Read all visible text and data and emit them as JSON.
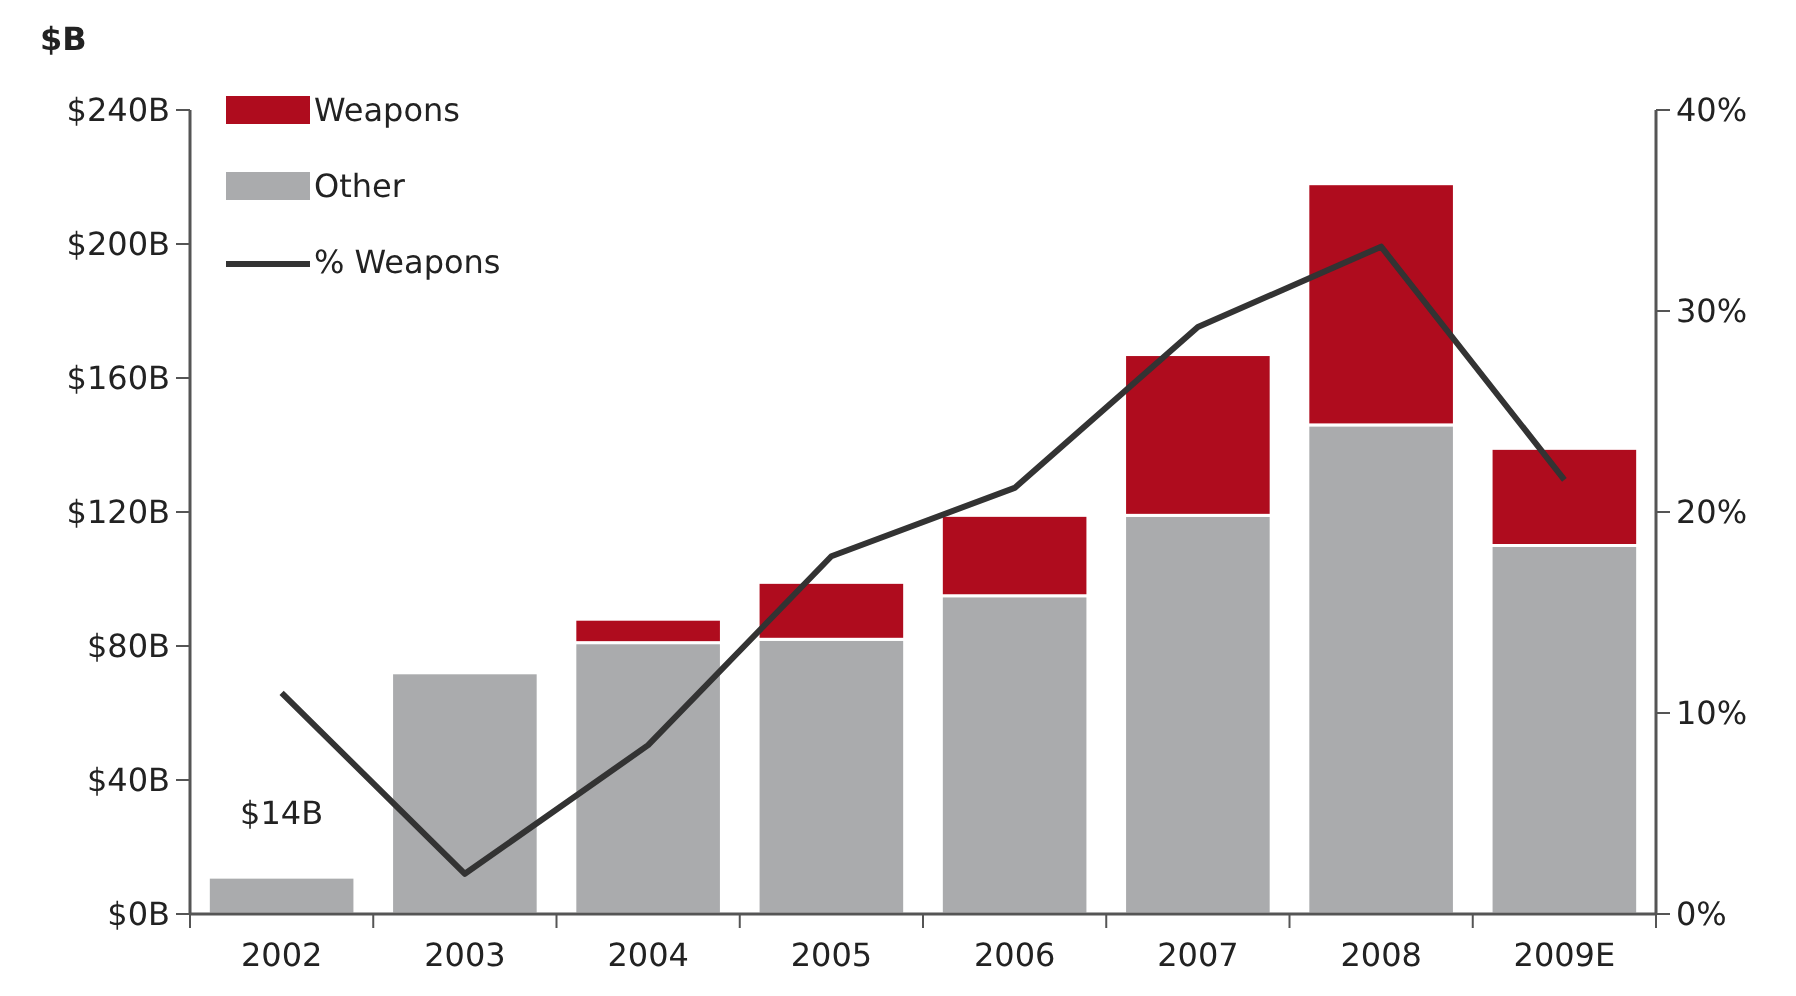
{
  "chart_data": {
    "type": "bar",
    "title": "$B",
    "stacked": true,
    "categories": [
      "2002",
      "2003",
      "2004",
      "2005",
      "2006",
      "2007",
      "2008",
      "2009E"
    ],
    "series": [
      {
        "name": "Other",
        "color": "#aaabad",
        "values": [
          11,
          72,
          81,
          82,
          95,
          119,
          146,
          110
        ]
      },
      {
        "name": "Weapons",
        "color": "#af0c1e",
        "values": [
          null,
          null,
          7,
          17,
          24,
          48,
          72,
          29
        ]
      },
      {
        "name": "% Weapons",
        "type": "line",
        "axis": "y2",
        "color": "#333333",
        "values": [
          11.0,
          2.0,
          8.4,
          17.8,
          21.2,
          29.2,
          33.2,
          21.6
        ]
      }
    ],
    "ylim": [
      0,
      240
    ],
    "yticks": [
      {
        "value": 0,
        "label": "$0B"
      },
      {
        "value": 40,
        "label": "$40B"
      },
      {
        "value": 80,
        "label": "$80B"
      },
      {
        "value": 120,
        "label": "$120B"
      },
      {
        "value": 160,
        "label": "$160B"
      },
      {
        "value": 200,
        "label": "$200B"
      },
      {
        "value": 240,
        "label": "$240B"
      }
    ],
    "y2lim": [
      0,
      40
    ],
    "y2ticks": [
      {
        "value": 0,
        "label": "0%"
      },
      {
        "value": 10,
        "label": "10%"
      },
      {
        "value": 20,
        "label": "20%"
      },
      {
        "value": 30,
        "label": "30%"
      },
      {
        "value": 40,
        "label": "40%"
      }
    ],
    "annotations": [
      "$14B"
    ],
    "legend": "top left",
    "grid": false,
    "marker": "none",
    "line_style": "solid"
  }
}
